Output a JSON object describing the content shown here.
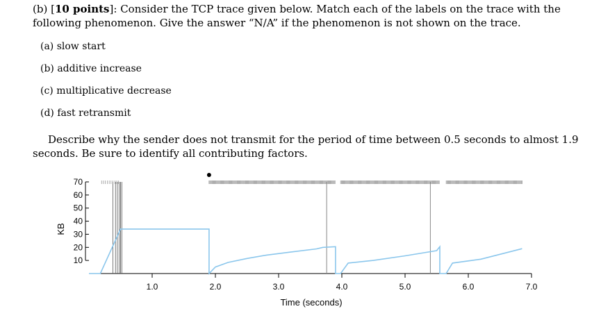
{
  "question": {
    "line1_prefix": "(b) [",
    "points": "10 points",
    "line1_suffix": "]: Consider the TCP trace given below. Match each of the labels on the trace with the",
    "line2": "following phenomenon. Give the answer “N/A” if the phenomenon is not shown on the trace."
  },
  "items": [
    "(a) slow start",
    "(b) additive increase",
    "(c) multiplicative decrease",
    "(d) fast retransmit"
  ],
  "describe": {
    "line1": "Describe why the sender does not transmit for the period of time between 0.5 seconds to almost 1.9",
    "line2": "seconds. Be sure to identify all contributing factors."
  },
  "chart_data": {
    "type": "line",
    "xlabel": "Time (seconds)",
    "ylabel": "KB",
    "xlim": [
      0,
      7.0
    ],
    "ylim": [
      0,
      70
    ],
    "x_ticks": [
      "1.0",
      "2.0",
      "3.0",
      "4.0",
      "5.0",
      "6.0",
      "7.0"
    ],
    "y_ticks": [
      "70",
      "60",
      "50",
      "40",
      "30",
      "20",
      "10"
    ],
    "line_color": "#8ac6ec",
    "series": [
      {
        "values": [
          [
            0,
            0
          ],
          [
            0.18,
            0
          ],
          [
            0.5,
            34
          ],
          [
            1.9,
            34
          ],
          [
            1.9,
            0
          ],
          [
            2.0,
            5
          ],
          [
            2.2,
            8.5
          ],
          [
            2.5,
            11.5
          ],
          [
            2.8,
            14
          ],
          [
            3.2,
            16.5
          ],
          [
            3.6,
            18.8
          ],
          [
            3.7,
            20
          ],
          [
            3.9,
            20.5
          ],
          [
            3.9,
            0
          ],
          [
            3.98,
            0
          ],
          [
            4.1,
            8
          ],
          [
            4.5,
            10
          ],
          [
            5.0,
            13.5
          ],
          [
            5.5,
            17.5
          ],
          [
            5.55,
            20.5
          ],
          [
            5.55,
            0
          ],
          [
            5.65,
            0
          ],
          [
            5.75,
            8
          ],
          [
            6.2,
            11
          ],
          [
            6.85,
            19
          ]
        ]
      }
    ],
    "vertical_markers": [
      0.5,
      3.76,
      5.4
    ],
    "ticks_marks_top": [
      {
        "from": 0.2,
        "to": 0.5,
        "density": "sparse"
      },
      {
        "from": 1.9,
        "to": 3.9,
        "density": "dense"
      },
      {
        "from": 3.98,
        "to": 5.55,
        "density": "dense"
      },
      {
        "from": 5.65,
        "to": 6.85,
        "density": "dense"
      }
    ],
    "dot": 1.9
  }
}
